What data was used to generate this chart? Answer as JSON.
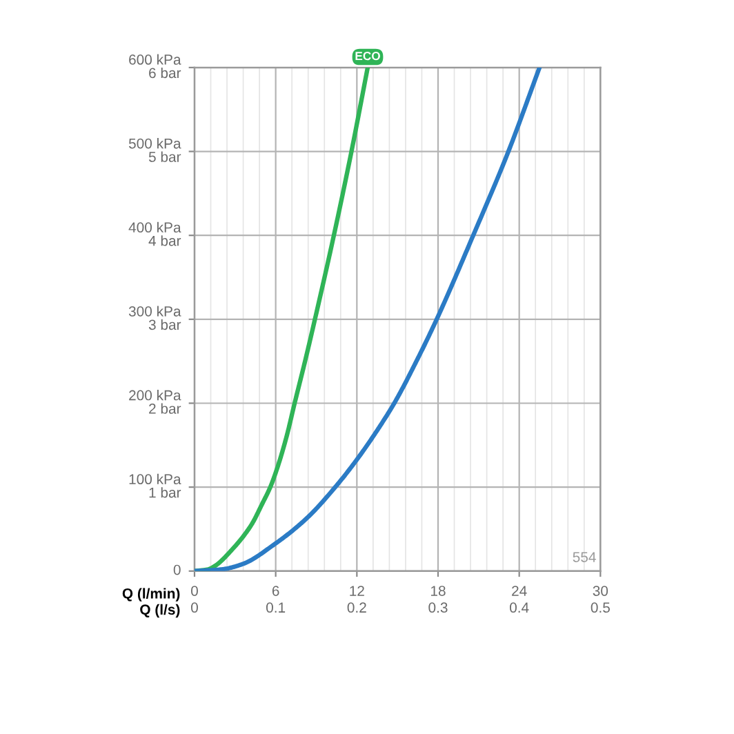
{
  "chart_data": {
    "type": "line",
    "xlabel": "Q (l/min)",
    "x2label": "Q (l/s)",
    "xlim": [
      0,
      30
    ],
    "xticks": [
      0,
      6,
      12,
      18,
      24,
      30
    ],
    "x2lim": [
      0,
      0.5
    ],
    "x2ticks": [
      0,
      0.1,
      0.2,
      0.3,
      0.4,
      0.5
    ],
    "ylim": [
      0,
      600
    ],
    "yticks": [
      0,
      {
        "value": 100,
        "label": "100 kPa"
      },
      {
        "value": 200,
        "label": "200 kPa"
      },
      {
        "value": 300,
        "label": "300 kPa"
      },
      {
        "value": 400,
        "label": "400 kPa"
      },
      {
        "value": 500,
        "label": "500 kPa"
      },
      {
        "value": 600,
        "label": "600 kPa"
      }
    ],
    "y2lim": [
      0,
      6
    ],
    "y2ticks": [
      {
        "value": 1,
        "label": "1 bar"
      },
      {
        "value": 2,
        "label": "2 bar"
      },
      {
        "value": 3,
        "label": "3 bar"
      },
      {
        "value": 4,
        "label": "4 bar"
      },
      {
        "value": 5,
        "label": "5 bar"
      },
      {
        "value": 6,
        "label": "6 bar"
      }
    ],
    "series": [
      {
        "name": "ECO",
        "color": "#2fb457",
        "x": [
          0,
          1,
          1.5,
          2.8,
          4.2,
          5,
          5.6,
          6.1,
          6.8,
          7.4,
          8.2,
          8.9,
          10.3,
          11.6,
          12.8
        ],
        "values": [
          0,
          2,
          6,
          26,
          55,
          80,
          100,
          122,
          160,
          200,
          252,
          300,
          400,
          500,
          600
        ]
      },
      {
        "color": "#2b7bc5",
        "x": [
          0,
          2,
          3.5,
          6,
          8.3,
          10.4,
          12.1,
          13.8,
          14.8,
          16.4,
          17.9,
          20.6,
          23.2,
          25.5
        ],
        "values": [
          0,
          2,
          8,
          33,
          63,
          100,
          135,
          175,
          201,
          250,
          300,
          400,
          500,
          600
        ]
      }
    ],
    "grid": true,
    "annotations": [
      "554"
    ]
  }
}
